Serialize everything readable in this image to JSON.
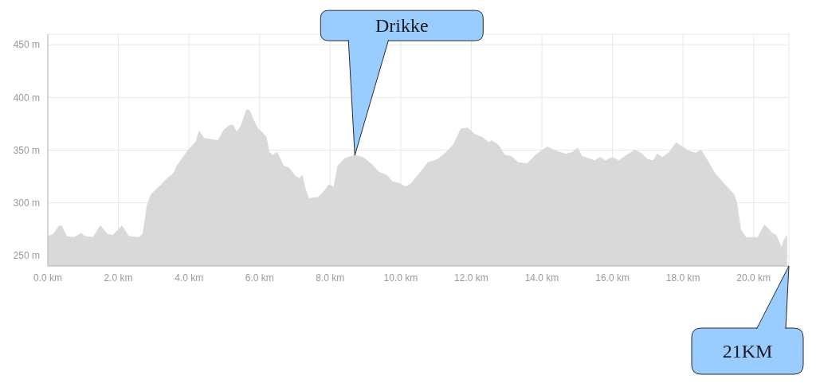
{
  "chart_data": {
    "type": "area",
    "x": [
      0,
      0.15,
      0.32,
      0.39,
      0.53,
      0.75,
      0.94,
      1.05,
      1.28,
      1.49,
      1.69,
      1.84,
      2.1,
      2.29,
      2.59,
      2.7,
      2.82,
      2.93,
      3.15,
      3.38,
      3.57,
      3.66,
      3.83,
      3.98,
      4.2,
      4.29,
      4.43,
      4.65,
      4.82,
      4.99,
      5.14,
      5.24,
      5.35,
      5.48,
      5.63,
      5.71,
      5.82,
      5.97,
      6.07,
      6.19,
      6.27,
      6.38,
      6.49,
      6.68,
      6.83,
      7.02,
      7.13,
      7.21,
      7.28,
      7.39,
      7.66,
      7.81,
      7.96,
      8.11,
      8.22,
      8.41,
      8.71,
      8.93,
      9.16,
      9.38,
      9.61,
      9.76,
      9.98,
      10.14,
      10.29,
      10.51,
      10.77,
      11.04,
      11.26,
      11.49,
      11.71,
      11.9,
      12.09,
      12.31,
      12.5,
      12.57,
      12.76,
      12.95,
      13.14,
      13.33,
      13.59,
      13.81,
      14.15,
      14.34,
      14.68,
      14.86,
      15.02,
      15.13,
      15.32,
      15.5,
      15.65,
      15.8,
      15.99,
      16.18,
      16.4,
      16.63,
      16.82,
      17,
      17.16,
      17.27,
      17.42,
      17.61,
      17.81,
      17.94,
      18.17,
      18.36,
      18.51,
      18.69,
      18.92,
      19.14,
      19.44,
      19.52,
      19.63,
      19.78,
      20.12,
      20.31,
      20.53,
      20.64,
      20.79,
      20.87,
      20.95
    ],
    "values": [
      268,
      270,
      278,
      278,
      268,
      267,
      271,
      268,
      267,
      278,
      270,
      269,
      278,
      268,
      267,
      271,
      298,
      308,
      315,
      323,
      328,
      335,
      343,
      350,
      358,
      368,
      361,
      360,
      359,
      369,
      373,
      374,
      367,
      373,
      388,
      388,
      379,
      369,
      367,
      362,
      348,
      345,
      348,
      335,
      333,
      325,
      323,
      326,
      315,
      304,
      305,
      310,
      317,
      315,
      335,
      342,
      345,
      343,
      337,
      329,
      326,
      320,
      318,
      315,
      318,
      327,
      338,
      341,
      347,
      355,
      370,
      371,
      365,
      362,
      357,
      359,
      355,
      345,
      344,
      338,
      337,
      345,
      353,
      350,
      346,
      348,
      352,
      344,
      342,
      340,
      343,
      340,
      343,
      340,
      345,
      350,
      347,
      341,
      340,
      346,
      343,
      348,
      357,
      354,
      349,
      347,
      350,
      340,
      327,
      319,
      308,
      300,
      275,
      267,
      267,
      279,
      271,
      269,
      257,
      265,
      269
    ],
    "color": "#d9d9d9",
    "xlim": [
      0,
      21
    ],
    "ylim": [
      240,
      460
    ],
    "xticks": [
      {
        "value": 0,
        "label": "0.0 km"
      },
      {
        "value": 2,
        "label": "2.0 km"
      },
      {
        "value": 4,
        "label": "4.0 km"
      },
      {
        "value": 6,
        "label": "6.0 km"
      },
      {
        "value": 8,
        "label": "8.0 km"
      },
      {
        "value": 10,
        "label": "10.0 km"
      },
      {
        "value": 12,
        "label": "12.0 km"
      },
      {
        "value": 14,
        "label": "14.0 km"
      },
      {
        "value": 16,
        "label": "16.0 km"
      },
      {
        "value": 18,
        "label": "18.0 km"
      },
      {
        "value": 20,
        "label": "20.0 km"
      }
    ],
    "yticks": [
      {
        "value": 250,
        "label": "250 m"
      },
      {
        "value": 300,
        "label": "300 m"
      },
      {
        "value": 350,
        "label": "350 m"
      },
      {
        "value": 400,
        "label": "400 m"
      },
      {
        "value": 450,
        "label": "450 m"
      }
    ],
    "grid": true,
    "annotations": [
      {
        "text": "Drikke",
        "x": 8.7,
        "y": 345
      },
      "21KM"
    ]
  }
}
